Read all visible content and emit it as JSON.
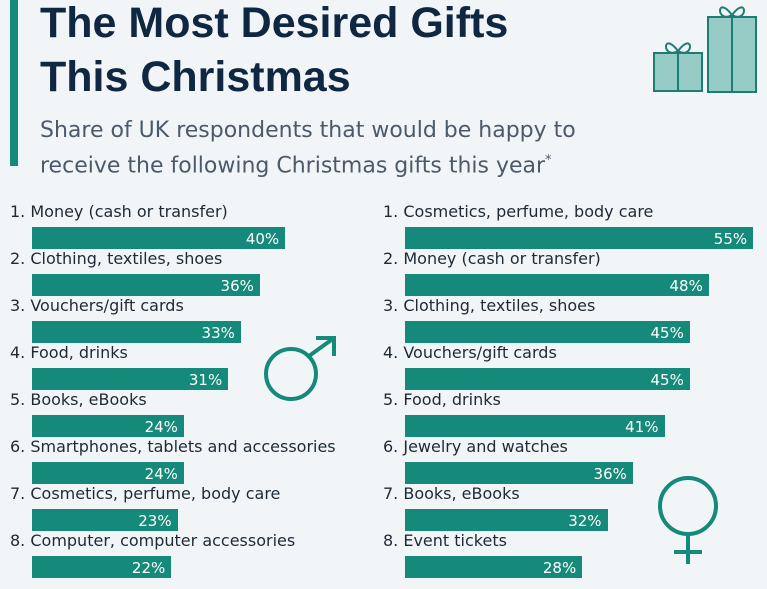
{
  "header": {
    "title_line1": "The Most Desired Gifts",
    "title_line2": "This Christmas",
    "subtitle": "Share of UK respondents that would be happy to receive the following Christmas gifts this year",
    "footnote_mark": "*"
  },
  "colors": {
    "bar": "#168a7a",
    "title": "#0f2741",
    "accent": "#168a7a",
    "gift_fill": "#97cbc5"
  },
  "icons": [
    "gift-icon",
    "male-symbol-icon",
    "female-symbol-icon"
  ],
  "chart_data": [
    {
      "type": "bar",
      "orientation": "horizontal",
      "group": "male",
      "unit": "%",
      "categories": [
        "1. Money (cash or transfer)",
        "2. Clothing, textiles, shoes",
        "3. Vouchers/gift cards",
        "4. Food, drinks",
        "5. Books, eBooks",
        "6. Smartphones, tablets and accessories",
        "7. Cosmetics, perfume, body care",
        "8. Computer, computer accessories"
      ],
      "values": [
        40,
        36,
        33,
        31,
        24,
        24,
        23,
        22
      ],
      "labels": [
        "40%",
        "36%",
        "33%",
        "31%",
        "24%",
        "24%",
        "23%",
        "22%"
      ]
    },
    {
      "type": "bar",
      "orientation": "horizontal",
      "group": "female",
      "unit": "%",
      "categories": [
        "1. Cosmetics, perfume, body care",
        "2. Money (cash or transfer)",
        "3. Clothing, textiles, shoes",
        "4. Vouchers/gift cards",
        "5. Food, drinks",
        "6. Jewelry and watches",
        "7. Books, eBooks",
        "8. Event tickets"
      ],
      "values": [
        55,
        48,
        45,
        45,
        41,
        36,
        32,
        28
      ],
      "labels": [
        "55%",
        "48%",
        "45%",
        "45%",
        "41%",
        "36%",
        "32%",
        "28%"
      ]
    }
  ]
}
